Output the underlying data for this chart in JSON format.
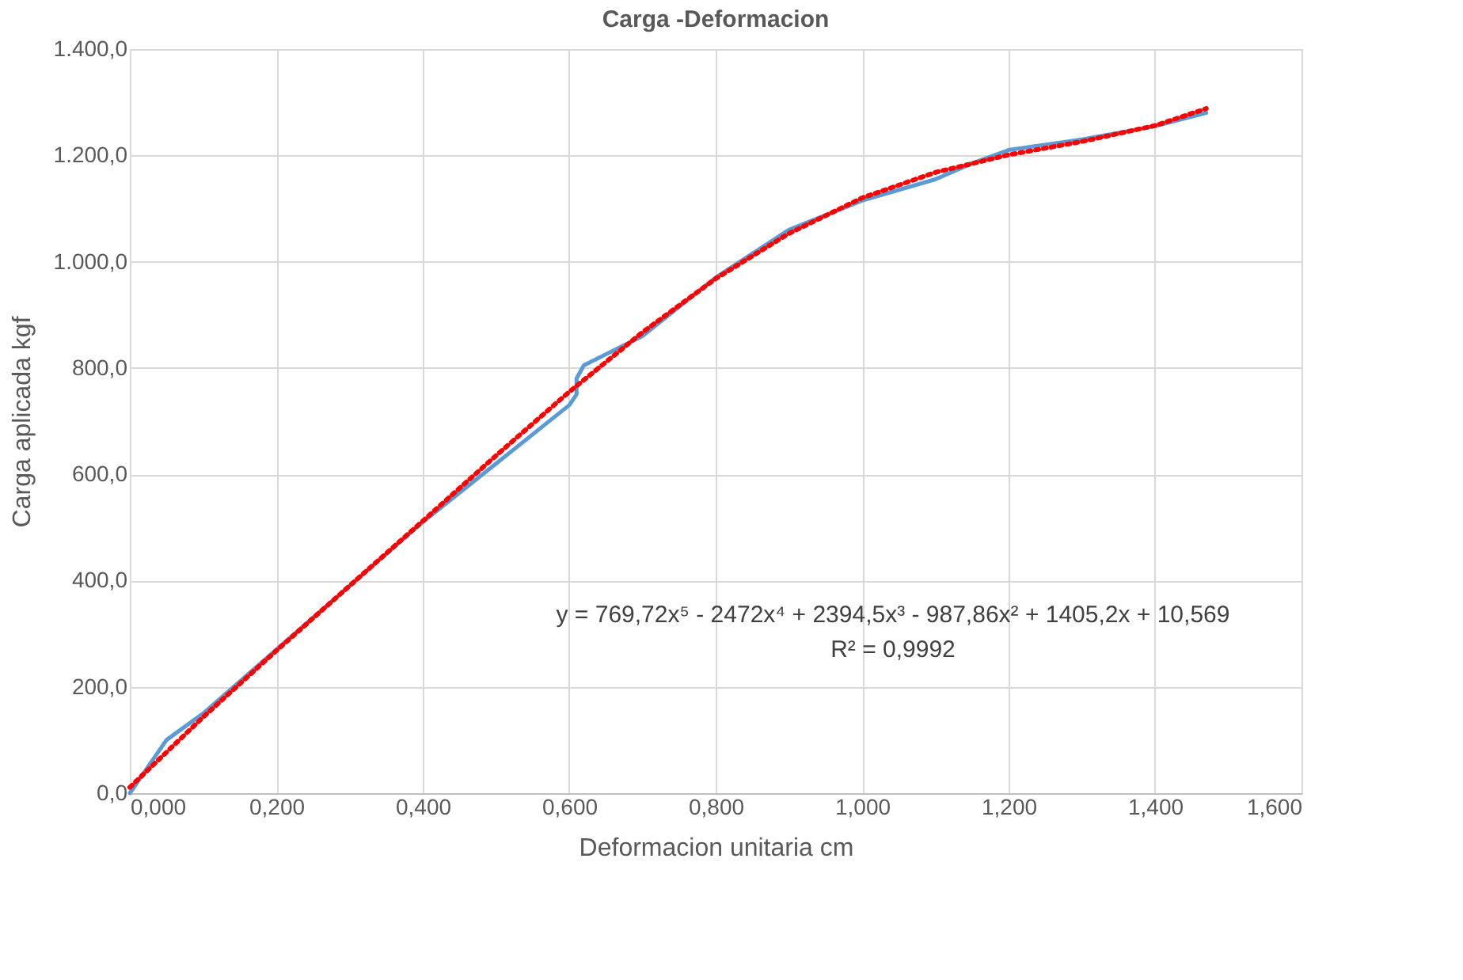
{
  "chart_data": {
    "type": "line",
    "title": "Carga -Deformacion",
    "xlabel": "Deformacion unitaria cm",
    "ylabel": "Carga aplicada kgf",
    "xlim": [
      0,
      1.6
    ],
    "ylim": [
      0,
      1400
    ],
    "xticks": [
      {
        "value": 0,
        "label": "0,000"
      },
      {
        "value": 0.2,
        "label": "0,200"
      },
      {
        "value": 0.4,
        "label": "0,400"
      },
      {
        "value": 0.6,
        "label": "0,600"
      },
      {
        "value": 0.8,
        "label": "0,800"
      },
      {
        "value": 1.0,
        "label": "1,000"
      },
      {
        "value": 1.2,
        "label": "1,200"
      },
      {
        "value": 1.4,
        "label": "1,400"
      },
      {
        "value": 1.6,
        "label": "1,600"
      }
    ],
    "yticks": [
      {
        "value": 0,
        "label": "0,0"
      },
      {
        "value": 200,
        "label": "200,0"
      },
      {
        "value": 400,
        "label": "400,0"
      },
      {
        "value": 600,
        "label": "600,0"
      },
      {
        "value": 800,
        "label": "800,0"
      },
      {
        "value": 1000,
        "label": "1.000,0"
      },
      {
        "value": 1200,
        "label": "1.200,0"
      },
      {
        "value": 1400,
        "label": "1.400,0"
      }
    ],
    "grid": true,
    "marker": "none",
    "series": [
      {
        "color": "#5b9bd5",
        "line_style": "solid",
        "x": [
          0,
          0.05,
          0.1,
          0.2,
          0.3,
          0.4,
          0.5,
          0.6,
          0.61,
          0.61,
          0.62,
          0.7,
          0.8,
          0.9,
          1.0,
          1.1,
          1.15,
          1.2,
          1.3,
          1.4,
          1.47
        ],
        "values": [
          0,
          100,
          150,
          270,
          390,
          510,
          620,
          730,
          750,
          780,
          805,
          860,
          970,
          1060,
          1115,
          1155,
          1185,
          1210,
          1230,
          1255,
          1280
        ]
      },
      {
        "type": "line",
        "color": "#ff0000",
        "line_style": "dotted",
        "x": [
          0,
          0.1,
          0.2,
          0.3,
          0.4,
          0.5,
          0.6,
          0.7,
          0.8,
          0.9,
          1.0,
          1.1,
          1.2,
          1.3,
          1.4,
          1.47
        ],
        "values": [
          11,
          143,
          268,
          390,
          512,
          635,
          755,
          867,
          968,
          1053,
          1120,
          1168,
          1201,
          1226,
          1256,
          1288
        ]
      }
    ],
    "annotations": [
      "y = 769,72x⁵ - 2472x⁴ + 2394,5x³ - 987,86x² + 1405,2x + 10,569",
      "R² = 0,9992"
    ]
  }
}
